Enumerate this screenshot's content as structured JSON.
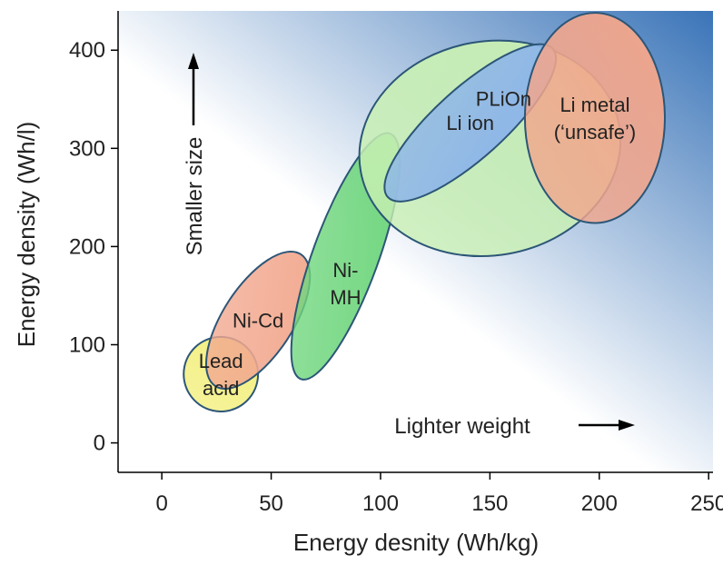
{
  "chart_data": {
    "type": "scatter",
    "title": "",
    "xlabel": "Energy desnity (Wh/kg)",
    "ylabel": "Energy density (Wh/l)",
    "xlim": [
      -20,
      252
    ],
    "ylim": [
      -30,
      440
    ],
    "x_ticks": [
      0,
      50,
      100,
      150,
      200,
      250
    ],
    "x_tick_labels": [
      "0",
      "50",
      "100",
      "150",
      "200",
      "250"
    ],
    "y_ticks": [
      0,
      100,
      200,
      300,
      400
    ],
    "y_tick_labels": [
      "0",
      "100",
      "200",
      "300",
      "400"
    ],
    "grid": false,
    "legend": "none",
    "background_gradient": [
      "#ffffff",
      "#3a74b8"
    ],
    "regions": [
      {
        "label_lines": [
          "Lead",
          "acid"
        ],
        "cx": 27,
        "cy": 70,
        "rx": 17,
        "ry": 38,
        "rotation_deg": -10,
        "color": "#f3ef7e"
      },
      {
        "label_lines": [
          "Ni-Cd"
        ],
        "cx": 44,
        "cy": 125,
        "rx": 16,
        "ry": 80,
        "rotation_deg": 33,
        "color": "#f2a990"
      },
      {
        "label_lines": [
          "Ni-",
          "MH"
        ],
        "cx": 84,
        "cy": 190,
        "rx": 15,
        "ry": 133,
        "rotation_deg": 20,
        "color": "#6fd67d"
      },
      {
        "label_lines": [
          "PLiOn"
        ],
        "cx": 150,
        "cy": 300,
        "rx": 60,
        "ry": 109,
        "rotation_deg": -10,
        "color": "#c9f0b4"
      },
      {
        "label_lines": [
          "Li ion"
        ],
        "cx": 141,
        "cy": 326,
        "rx": 16,
        "ry": 113,
        "rotation_deg": 48,
        "color": "#8cb4ea"
      },
      {
        "label_lines": [
          "Li metal",
          "(‘unsafe’)"
        ],
        "cx": 198,
        "cy": 331,
        "rx": 32,
        "ry": 107,
        "rotation_deg": 0,
        "color": "#f2a68c"
      }
    ],
    "annotations": [
      {
        "text": "Smaller size",
        "direction": "up"
      },
      {
        "text": "Lighter weight",
        "direction": "right"
      }
    ]
  }
}
